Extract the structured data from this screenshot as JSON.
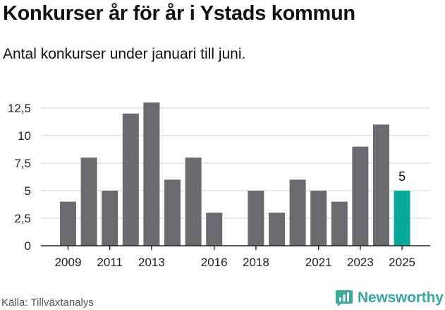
{
  "header": {
    "title": "Konkurser år för år i Ystads kommun",
    "subtitle": "Antal konkurser under januari till juni."
  },
  "footer": {
    "source": "Källa: Tillväxtanalys",
    "brand": "Newsworthy",
    "brand_icon": "newsworthy-logo-icon"
  },
  "colors": {
    "bar": "#6b6a6f",
    "highlight": "#0aa89a",
    "grid": "#d9d9d9",
    "axis": "#222222"
  },
  "chart_data": {
    "type": "bar",
    "categories": [
      "2009",
      "2010",
      "2011",
      "2012",
      "2013",
      "2014",
      "2015",
      "2016",
      "2017",
      "2018",
      "2019",
      "2020",
      "2021",
      "2022",
      "2023",
      "2024",
      "2025"
    ],
    "values": [
      4,
      8,
      5,
      12,
      13,
      6,
      8,
      3,
      0,
      5,
      3,
      6,
      5,
      4,
      9,
      11,
      5
    ],
    "xtick_labels": [
      "2009",
      "2011",
      "2013",
      "2016",
      "2018",
      "2021",
      "2023",
      "2025"
    ],
    "yticks": [
      0,
      2.5,
      5,
      7.5,
      10,
      12.5
    ],
    "ytick_labels": [
      "0",
      "2,5",
      "5",
      "7,5",
      "10",
      "12,5"
    ],
    "ylim": [
      0,
      12.5
    ],
    "highlight_category": "2025",
    "highlight_label": "5",
    "grid": true,
    "legend": "none",
    "title": "Konkurser år för år i Ystads kommun",
    "xlabel": "",
    "ylabel": ""
  }
}
